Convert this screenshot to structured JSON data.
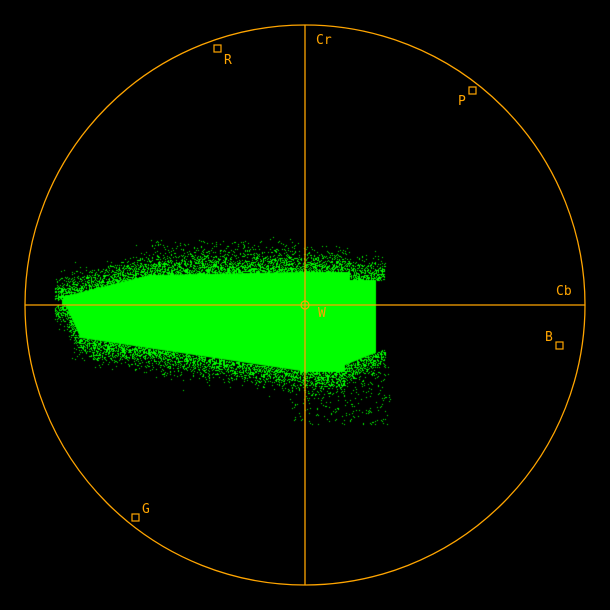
{
  "colors": {
    "background": "#000000",
    "graticule": "#FFA500",
    "trace": "#00FF00"
  },
  "axes": {
    "cr_label": "Cr",
    "cb_label": "Cb"
  },
  "targets": {
    "r": "R",
    "p": "P",
    "b": "B",
    "g": "G",
    "w": "W"
  }
}
